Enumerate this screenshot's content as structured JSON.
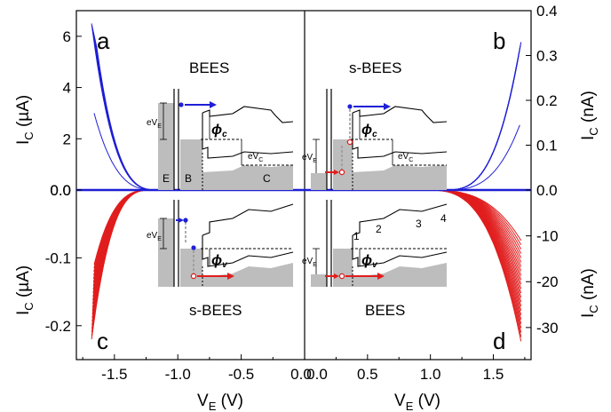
{
  "chart_data": {
    "type": "line",
    "layout": "four panels (a top-left, b top-right, c bottom-left, d bottom-right) sharing a central x axis",
    "panels": [
      {
        "label": "a",
        "mode": "BEES",
        "side": "left",
        "position": "top",
        "xlabel_main": "V",
        "xlabel_sub": "E",
        "xlabel_unit": " (V)",
        "ylabel_main": "I",
        "ylabel_sub": "C",
        "ylabel_unit": " (µA)",
        "xlim": [
          -1.8,
          0.0
        ],
        "ylim": [
          0,
          7
        ],
        "yticks": [
          "6",
          "4",
          "2"
        ],
        "yticks_values": [
          6,
          4,
          2
        ],
        "color": "#1f1fd6",
        "series_summary": "many current curves, onset near -1.15 V, rising to about 6.5 µA at -1.68 V (thinner outlier reaching ~3 µA)",
        "inset_labels": {
          "E": "E",
          "B": "B",
          "C": "C",
          "eVE_main": "eV",
          "eVE_sub": "E",
          "eVC_main": "eV",
          "eVC_sub": "C",
          "phi_main": "ϕ",
          "phi_sub": "c"
        }
      },
      {
        "label": "b",
        "mode": "s-BEES",
        "side": "right",
        "position": "top",
        "ylabel_main": "I",
        "ylabel_sub": "C",
        "ylabel_unit": " (nA)",
        "xlim": [
          0.0,
          1.8
        ],
        "ylim": [
          0,
          0.4
        ],
        "yticks": [
          "0.4",
          "0.3",
          "0.2",
          "0.1",
          "0.0"
        ],
        "yticks_values": [
          0.4,
          0.3,
          0.2,
          0.1,
          0.0
        ],
        "color": "#1f1fd6",
        "series_summary": "many current curves, onset near 1.1 V, rising to about 0.33 nA at 1.72 V",
        "inset_labels": {
          "eVE_main": "eV",
          "eVE_sub": "E",
          "eVC_main": "eV",
          "eVC_sub": "C",
          "phi_main": "ϕ",
          "phi_sub": "c"
        }
      },
      {
        "label": "c",
        "mode": "s-BEES",
        "side": "left",
        "position": "bottom",
        "ylabel_main": "I",
        "ylabel_sub": "C",
        "ylabel_unit": " (µA)",
        "xlim": [
          -1.8,
          0.0
        ],
        "ylim": [
          -0.25,
          0
        ],
        "yticks": [
          "0.0",
          "-0.1",
          "-0.2"
        ],
        "yticks_values": [
          0.0,
          -0.1,
          -0.2
        ],
        "color": "#e11d1d",
        "series_summary": "many current curves, onset near -1.2 V, falling to about -0.22 µA at -1.68 V",
        "inset_labels": {
          "eVE_main": "eV",
          "eVE_sub": "E",
          "phi_main": "ϕ",
          "phi_sub": "v"
        }
      },
      {
        "label": "d",
        "mode": "BEES",
        "side": "right",
        "position": "bottom",
        "ylabel_main": "I",
        "ylabel_sub": "C",
        "ylabel_unit": " (nA)",
        "xlim": [
          0.0,
          1.8
        ],
        "ylim": [
          -37,
          0
        ],
        "yticks": [
          "-10",
          "-20",
          "-30"
        ],
        "yticks_values": [
          -10,
          -20,
          -30
        ],
        "color": "#e11d1d",
        "series_summary": "many current curves, onset near 0.95 V, falling to about -33 nA at 1.72 V",
        "inset_labels": {
          "eVE_main": "eV",
          "eVE_sub": "E",
          "phi_main": "ϕ",
          "phi_sub": "v",
          "n1": "1",
          "n2": "2",
          "n3": "3",
          "n4": "4"
        }
      }
    ],
    "x_ticks_left": [
      "-1.5",
      "-1.0",
      "-0.5",
      "0.0"
    ],
    "x_ticks_left_values": [
      -1.5,
      -1.0,
      -0.5,
      0.0
    ],
    "x_ticks_right": [
      "0.0",
      "0.5",
      "1.0",
      "1.5"
    ],
    "x_ticks_right_values": [
      0.0,
      0.5,
      1.0,
      1.5
    ],
    "center_y_tick_left": "0.0",
    "center_y_tick_right": "0.0"
  }
}
